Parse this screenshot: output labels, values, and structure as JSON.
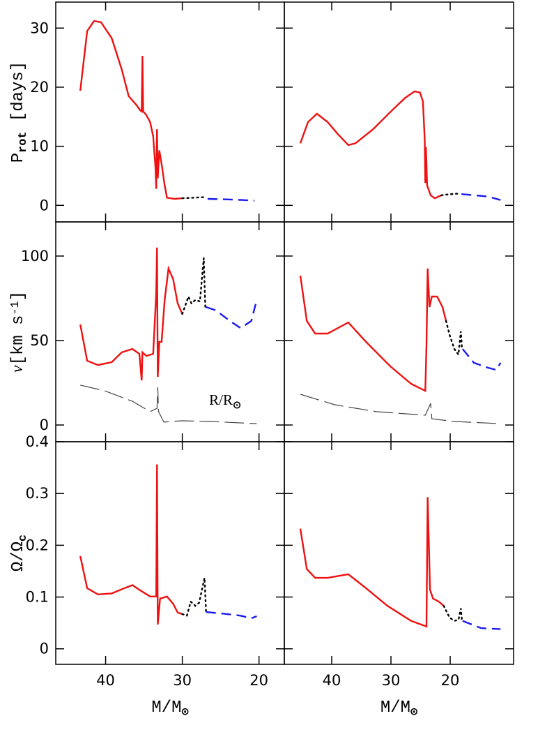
{
  "chart_data": [
    {
      "type": "line",
      "xlim": [
        46.5,
        16.7
      ],
      "xticks": [
        40,
        30,
        20
      ],
      "ylim": [
        -2.8,
        34.4
      ],
      "yticks": [
        0,
        10,
        20,
        30
      ],
      "ylabel": [
        {
          "text": "P"
        },
        {
          "text": "rot",
          "style": "sub"
        },
        {
          "text": " [days]"
        }
      ],
      "series": [
        {
          "color": "#ee1111",
          "dash": "solid",
          "x": [
            43.3,
            42.4,
            41.5,
            40.6,
            39.2,
            37.9,
            37.0,
            36.0,
            35.5,
            35.3,
            35.2,
            35.1,
            34.7,
            34.2,
            33.8,
            33.5,
            33.4,
            33.3,
            33.2,
            33.0,
            32.7,
            32.3,
            32.0,
            31.0,
            30.0
          ],
          "values": [
            19.4,
            29.5,
            31.2,
            31.0,
            28.3,
            23.0,
            18.5,
            17.0,
            16.1,
            15.9,
            25.3,
            15.9,
            15.3,
            14.1,
            11.7,
            6.4,
            2.8,
            12.9,
            4.6,
            9.3,
            7.0,
            3.4,
            1.3,
            1.1,
            1.2
          ]
        },
        {
          "color": "#000000",
          "dash": "dotted",
          "x": [
            30.0,
            28.5,
            27.0
          ],
          "values": [
            1.2,
            1.3,
            1.4
          ]
        },
        {
          "color": "#1a1aee",
          "dash": "dashed",
          "x": [
            26.7,
            24.0,
            22.0,
            20.6
          ],
          "values": [
            1.1,
            1.0,
            0.9,
            0.8
          ]
        }
      ]
    },
    {
      "type": "line",
      "xlim": [
        48,
        9.3
      ],
      "xticks": [
        40,
        30,
        20
      ],
      "ylim": [
        -2.8,
        34.4
      ],
      "yticks": [
        0,
        10,
        20,
        30
      ],
      "series": [
        {
          "color": "#ee1111",
          "dash": "solid",
          "x": [
            45.3,
            44.0,
            42.5,
            40.7,
            39.0,
            37.2,
            36.0,
            33.0,
            30.0,
            27.6,
            26.0,
            25.1,
            24.6,
            24.3,
            24.2,
            24.1,
            23.9,
            23.3,
            22.6,
            21.5
          ],
          "values": [
            10.5,
            14.1,
            15.5,
            14.1,
            12.1,
            10.2,
            10.5,
            12.9,
            15.9,
            18.2,
            19.3,
            19.1,
            17.6,
            11.1,
            3.8,
            9.9,
            3.4,
            1.7,
            1.2,
            1.7
          ]
        },
        {
          "color": "#000000",
          "dash": "dotted",
          "x": [
            21.5,
            20.0,
            18.4
          ],
          "values": [
            1.7,
            1.9,
            2.0
          ]
        },
        {
          "color": "#1a1aee",
          "dash": "dashed",
          "x": [
            18.1,
            15.8,
            13.6,
            11.5
          ],
          "values": [
            1.9,
            1.7,
            1.5,
            0.9
          ]
        }
      ]
    },
    {
      "type": "line",
      "xlim": [
        46.5,
        16.7
      ],
      "xticks": [
        40,
        30,
        20
      ],
      "ylim": [
        -9.9,
        120.2
      ],
      "yticks": [
        0,
        50,
        100
      ],
      "ylabel": [
        {
          "text": "v",
          "style": "italic"
        },
        {
          "text": "[km s"
        },
        {
          "text": "-1",
          "style": "sup"
        },
        {
          "text": "]"
        }
      ],
      "annotation": [
        {
          "text": "R/R"
        },
        {
          "text": "⊙",
          "style": "sub"
        }
      ],
      "annotation_xy": [
        26.5,
        12
      ],
      "series": [
        {
          "color": "#ee1111",
          "dash": "solid",
          "x": [
            43.3,
            42.4,
            41.0,
            39.2,
            37.9,
            36.5,
            35.6,
            35.3,
            35.2,
            34.7,
            33.8,
            33.4,
            33.3,
            33.2,
            33.0,
            32.7,
            32.3,
            31.8,
            31.2,
            30.6,
            30.0
          ],
          "values": [
            59.5,
            38.0,
            35.5,
            37.2,
            43.0,
            45.0,
            42.1,
            26.4,
            43.0,
            40.9,
            42.1,
            78.1,
            105,
            28.5,
            49.2,
            49.2,
            74.0,
            92.6,
            86.4,
            71.9,
            65.7
          ]
        },
        {
          "color": "#000000",
          "dash": "dotted",
          "x": [
            30.0,
            29.2,
            28.8,
            28.3,
            27.7,
            27.2,
            27.0
          ],
          "values": [
            65.7,
            76.0,
            71.9,
            74.0,
            73.1,
            98.8,
            69.8
          ]
        },
        {
          "color": "#1a1aee",
          "dash": "dashed",
          "x": [
            26.9,
            25.6,
            23.8,
            22.4,
            21.0,
            20.3
          ],
          "values": [
            69.8,
            67.8,
            61.6,
            57.4,
            61.6,
            74.0
          ]
        },
        {
          "color": "#444444",
          "dash": "longdash",
          "x": [
            43.3,
            40.1,
            36.5,
            34.2,
            33.3,
            33.2,
            33.1,
            32.4,
            30.1,
            26.5,
            20.3
          ],
          "values": [
            23.6,
            20.2,
            14.0,
            7.9,
            9.9,
            22.3,
            7.9,
            1.7,
            2.5,
            2.1,
            0.8
          ]
        }
      ]
    },
    {
      "type": "line",
      "xlim": [
        48,
        9.3
      ],
      "xticks": [
        40,
        30,
        20
      ],
      "ylim": [
        -9.9,
        120.2
      ],
      "yticks": [
        0,
        50,
        100
      ],
      "series": [
        {
          "color": "#ee1111",
          "dash": "solid",
          "x": [
            45.3,
            44.2,
            42.8,
            40.7,
            37.2,
            34.2,
            30.1,
            26.6,
            24.2,
            24.0,
            23.8,
            23.5,
            23.1,
            22.2,
            21.3,
            20.7
          ],
          "values": [
            88.4,
            61.6,
            54.1,
            54.1,
            60.7,
            49.2,
            34.7,
            24.4,
            20.2,
            47.1,
            92.6,
            69.8,
            76.0,
            76.0,
            69.8,
            61.6
          ]
        },
        {
          "color": "#000000",
          "dash": "dotted",
          "x": [
            20.7,
            20.1,
            19.3,
            18.6,
            18.2,
            18.0
          ],
          "values": [
            61.6,
            53.3,
            45.0,
            41.7,
            55.4,
            45.0
          ]
        },
        {
          "color": "#1a1aee",
          "dash": "dashed",
          "x": [
            17.9,
            16.0,
            13.6,
            12.2,
            11.5
          ],
          "values": [
            45.0,
            36.8,
            33.9,
            32.6,
            36.8
          ]
        },
        {
          "color": "#444444",
          "dash": "longdash",
          "x": [
            45.3,
            39.5,
            32.5,
            24.2,
            23.3,
            23.1,
            19.5,
            11.5
          ],
          "values": [
            18.2,
            12.0,
            7.9,
            5.8,
            12.8,
            3.7,
            2.1,
            0.8
          ]
        }
      ]
    },
    {
      "type": "line",
      "xlim": [
        46.5,
        16.7
      ],
      "xticks": [
        40,
        30,
        20
      ],
      "ylim": [
        -0.03,
        0.4
      ],
      "yticks": [
        0,
        0.1,
        0.2,
        0.3,
        0.4
      ],
      "ylabel": [
        {
          "text": "Ω/Ω"
        },
        {
          "text": "c",
          "style": "sub"
        }
      ],
      "xlabel": [
        {
          "text": "M/M"
        },
        {
          "text": "⊙",
          "style": "sub"
        }
      ],
      "series": [
        {
          "color": "#ee1111",
          "dash": "solid",
          "x": [
            43.3,
            42.4,
            41.0,
            39.2,
            37.4,
            36.5,
            35.6,
            34.2,
            33.4,
            33.3,
            33.2,
            32.9,
            32.0,
            31.2,
            30.6,
            30.0
          ],
          "values": [
            0.179,
            0.117,
            0.105,
            0.107,
            0.118,
            0.123,
            0.114,
            0.101,
            0.101,
            0.356,
            0.047,
            0.097,
            0.101,
            0.087,
            0.07,
            0.067
          ]
        },
        {
          "color": "#000000",
          "dash": "dotted",
          "x": [
            30.0,
            29.4,
            28.9,
            28.3,
            27.8,
            27.1,
            26.9
          ],
          "values": [
            0.067,
            0.064,
            0.091,
            0.083,
            0.089,
            0.137,
            0.071
          ]
        },
        {
          "color": "#1a1aee",
          "dash": "dashed",
          "x": [
            26.9,
            24.7,
            22.4,
            21.0,
            20.3
          ],
          "values": [
            0.071,
            0.068,
            0.064,
            0.059,
            0.063
          ]
        }
      ]
    },
    {
      "type": "line",
      "xlim": [
        48,
        9.3
      ],
      "xticks": [
        40,
        30,
        20
      ],
      "ylim": [
        -0.03,
        0.4
      ],
      "yticks": [
        0,
        0.1,
        0.2,
        0.3,
        0.4
      ],
      "xlabel": [
        {
          "text": "M/M"
        },
        {
          "text": "⊙",
          "style": "sub"
        }
      ],
      "series": [
        {
          "color": "#ee1111",
          "dash": "solid",
          "x": [
            45.3,
            44.2,
            42.8,
            40.7,
            37.2,
            34.2,
            30.6,
            26.6,
            24.0,
            23.8,
            23.4,
            22.9,
            21.9,
            21.1
          ],
          "values": [
            0.232,
            0.154,
            0.137,
            0.137,
            0.144,
            0.117,
            0.083,
            0.054,
            0.043,
            0.293,
            0.114,
            0.097,
            0.091,
            0.083
          ]
        },
        {
          "color": "#000000",
          "dash": "dotted",
          "x": [
            21.1,
            20.1,
            19.3,
            18.6,
            18.2,
            18.0
          ],
          "values": [
            0.083,
            0.06,
            0.054,
            0.056,
            0.078,
            0.054
          ]
        },
        {
          "color": "#1a1aee",
          "dash": "dashed",
          "x": [
            17.9,
            14.8,
            11.5
          ],
          "values": [
            0.054,
            0.04,
            0.038
          ]
        }
      ]
    }
  ]
}
